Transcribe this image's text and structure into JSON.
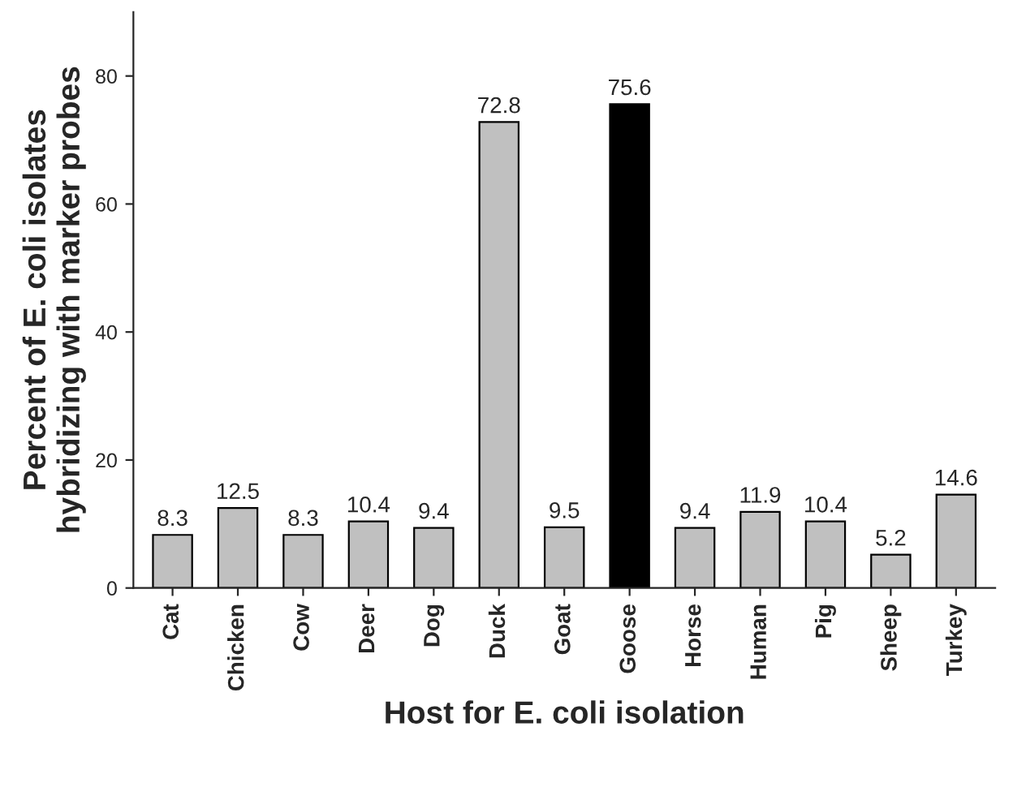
{
  "chart_data": {
    "type": "bar",
    "xlabel": "Host for E. coli isolation",
    "ylabel": "Percent of E. coli isolates\nhybridizing with marker probes",
    "categories": [
      "Cat",
      "Chicken",
      "Cow",
      "Deer",
      "Dog",
      "Duck",
      "Goat",
      "Goose",
      "Horse",
      "Human",
      "Pig",
      "Sheep",
      "Turkey"
    ],
    "values": [
      8.3,
      12.5,
      8.3,
      10.4,
      9.4,
      72.8,
      9.5,
      75.6,
      9.4,
      11.9,
      10.4,
      5.2,
      14.6
    ],
    "colors": [
      "#c0c0c0",
      "#c0c0c0",
      "#c0c0c0",
      "#c0c0c0",
      "#c0c0c0",
      "#c0c0c0",
      "#c0c0c0",
      "#000000",
      "#c0c0c0",
      "#c0c0c0",
      "#c0c0c0",
      "#c0c0c0",
      "#c0c0c0"
    ],
    "ylim": [
      0,
      90
    ],
    "yticks": [
      0,
      20,
      40,
      60,
      80
    ],
    "data_labels": true,
    "grid": false,
    "legend": false
  }
}
